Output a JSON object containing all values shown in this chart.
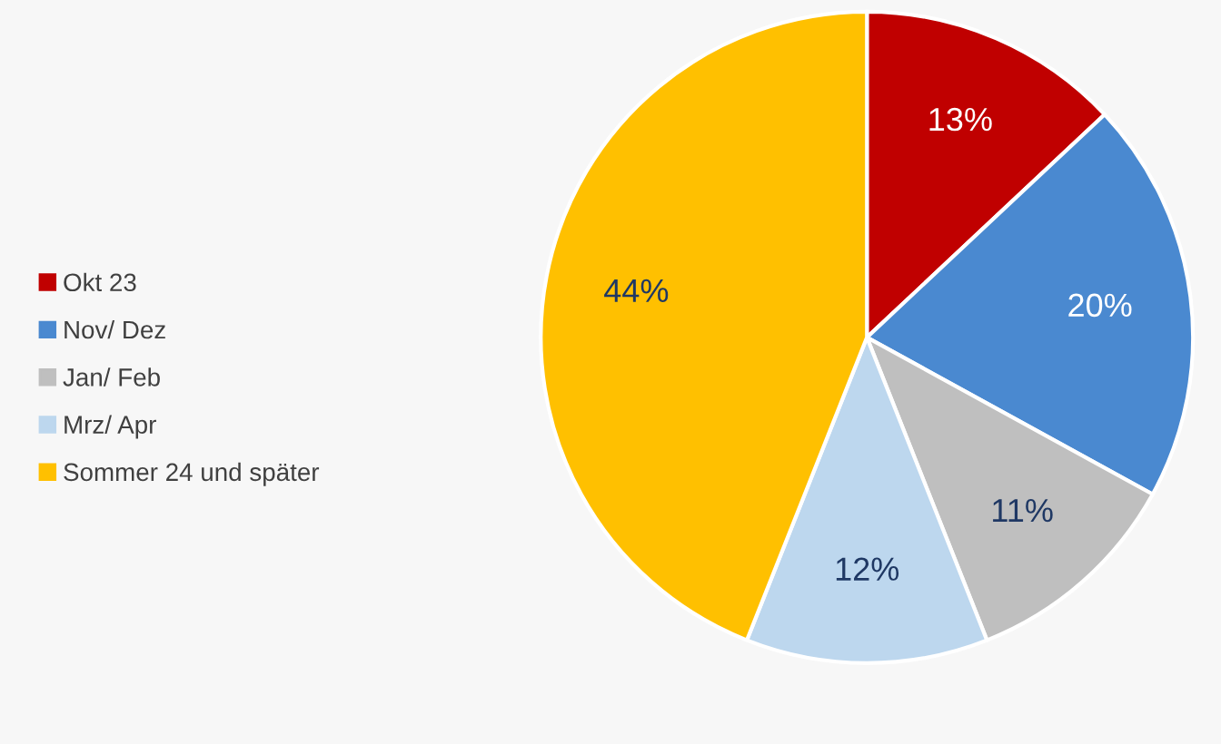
{
  "chart_data": {
    "type": "pie",
    "categories": [
      "Okt 23",
      "Nov/ Dez",
      "Jan/ Feb",
      "Mrz/ Apr",
      "Sommer 24 und später"
    ],
    "values": [
      13,
      20,
      11,
      12,
      44
    ],
    "value_labels": [
      "13%",
      "20%",
      "11%",
      "12%",
      "44%"
    ],
    "colors": [
      "#c00000",
      "#4a89d0",
      "#bfbfbf",
      "#bdd7ee",
      "#ffc000"
    ],
    "legend": "left"
  }
}
